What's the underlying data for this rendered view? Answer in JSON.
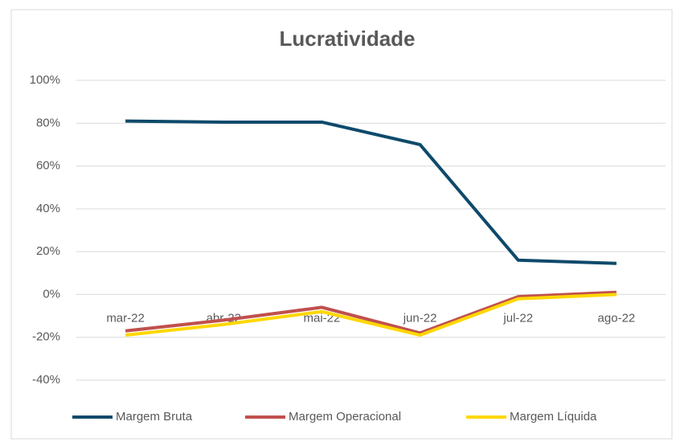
{
  "chart_data": {
    "type": "line",
    "title": "Lucratividade",
    "categories": [
      "mar-22",
      "abr-22",
      "mai-22",
      "jun-22",
      "jul-22",
      "ago-22"
    ],
    "series": [
      {
        "name": "Margem Bruta",
        "color": "#0e4a6b",
        "values": [
          81,
          80.5,
          80.5,
          70,
          16,
          14.5
        ]
      },
      {
        "name": "Margem Operacional",
        "color": "#c0504d",
        "values": [
          -17,
          -12,
          -6,
          -18,
          -1,
          1
        ]
      },
      {
        "name": "Margem Líquida",
        "color": "#ffd700",
        "values": [
          -19,
          -14,
          -8,
          -19,
          -2,
          0
        ]
      }
    ],
    "ylim": [
      -40,
      100
    ],
    "yticks": [
      {
        "value": -40,
        "label": "-40%"
      },
      {
        "value": -20,
        "label": "-20%"
      },
      {
        "value": 0,
        "label": "0%"
      },
      {
        "value": 20,
        "label": "20%"
      },
      {
        "value": 40,
        "label": "40%"
      },
      {
        "value": 60,
        "label": "60%"
      },
      {
        "value": 80,
        "label": "80%"
      },
      {
        "value": 100,
        "label": "100%"
      }
    ],
    "grid": true,
    "legend": "bottom"
  }
}
